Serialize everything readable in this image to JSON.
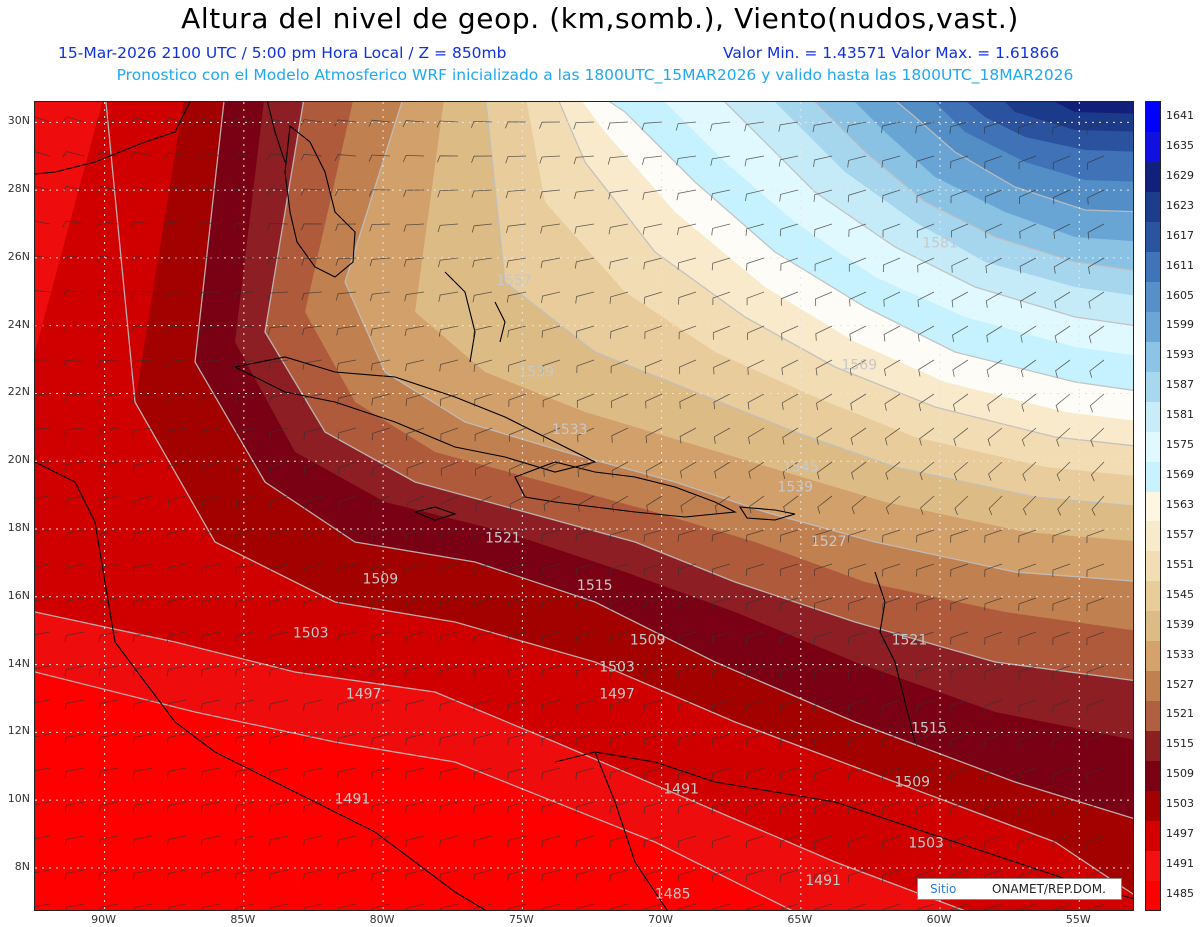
{
  "header": {
    "title": "Altura del nivel de geop. (km,somb.), Viento(nudos,vast.)",
    "subtitle_left": "15-Mar-2026  2100 UTC / 5:00 pm Hora Local / Z = 850mb",
    "subtitle_minmax": "Valor Min. = 1.43571  Valor Max. = 1.61866",
    "subtitle_model": "Pronostico con el Modelo Atmosferico WRF inicializado a las 1800UTC_15MAR2026 y valido hasta las  1800UTC_18MAR2026"
  },
  "map": {
    "lat_range": [
      6.7,
      30.6
    ],
    "lon_range": [
      -92.5,
      -53.0
    ],
    "lat_labels": [
      "30N",
      "28N",
      "26N",
      "24N",
      "22N",
      "20N",
      "18N",
      "16N",
      "14N",
      "12N",
      "10N",
      "8N"
    ],
    "lat_values": [
      30,
      28,
      26,
      24,
      22,
      20,
      18,
      16,
      14,
      12,
      10,
      8
    ],
    "lon_labels": [
      "90W",
      "85W",
      "80W",
      "75W",
      "70W",
      "65W",
      "60W",
      "55W"
    ],
    "lon_values": [
      -90,
      -85,
      -80,
      -75,
      -70,
      -65,
      -60,
      -55
    ],
    "contour_labels": [
      {
        "text": "1557",
        "lon": -75.3,
        "lat": 25.2
      },
      {
        "text": "1569",
        "lon": -62.9,
        "lat": 22.7
      },
      {
        "text": "1581",
        "lon": -60.0,
        "lat": 26.3
      },
      {
        "text": "1539",
        "lon": -74.5,
        "lat": 22.5
      },
      {
        "text": "1533",
        "lon": -73.3,
        "lat": 20.8
      },
      {
        "text": "1545",
        "lon": -65.0,
        "lat": 19.7
      },
      {
        "text": "1539",
        "lon": -65.2,
        "lat": 19.1
      },
      {
        "text": "1527",
        "lon": -64.0,
        "lat": 17.5
      },
      {
        "text": "1521",
        "lon": -75.7,
        "lat": 17.6
      },
      {
        "text": "1521",
        "lon": -61.1,
        "lat": 14.6
      },
      {
        "text": "1515",
        "lon": -72.4,
        "lat": 16.2
      },
      {
        "text": "1515",
        "lon": -60.4,
        "lat": 12.0
      },
      {
        "text": "1509",
        "lon": -80.1,
        "lat": 16.4
      },
      {
        "text": "1509",
        "lon": -70.5,
        "lat": 14.6
      },
      {
        "text": "1509",
        "lon": -61.0,
        "lat": 10.4
      },
      {
        "text": "1503",
        "lon": -82.6,
        "lat": 14.8
      },
      {
        "text": "1503",
        "lon": -71.6,
        "lat": 13.8
      },
      {
        "text": "1503",
        "lon": -60.5,
        "lat": 8.6
      },
      {
        "text": "1497",
        "lon": -80.7,
        "lat": 13.0
      },
      {
        "text": "1497",
        "lon": -71.6,
        "lat": 13.0
      },
      {
        "text": "1491",
        "lon": -81.1,
        "lat": 9.9
      },
      {
        "text": "1491",
        "lon": -69.3,
        "lat": 10.2
      },
      {
        "text": "1491",
        "lon": -64.2,
        "lat": 7.5
      },
      {
        "text": "1485",
        "lon": -69.6,
        "lat": 7.1
      }
    ]
  },
  "colorbar": {
    "labels": [
      "1485",
      "1491",
      "1497",
      "1503",
      "1509",
      "1515",
      "1521",
      "1527",
      "1533",
      "1539",
      "1545",
      "1551",
      "1557",
      "1563",
      "1569",
      "1575",
      "1581",
      "1587",
      "1593",
      "1599",
      "1605",
      "1611",
      "1617",
      "1623",
      "1629",
      "1635",
      "1641"
    ],
    "colors": [
      "#ff0000",
      "#f21010",
      "#d40000",
      "#a50000",
      "#7a0014",
      "#8c2020",
      "#b06040",
      "#c08050",
      "#d3a36b",
      "#ddbb85",
      "#e8cc9a",
      "#f2ddb5",
      "#f8ebcc",
      "#fef6e0",
      "#c8f2ff",
      "#e2f8ff",
      "#c8ecf8",
      "#a8d8ef",
      "#8cc4e6",
      "#6aa6d6",
      "#5590c8",
      "#3f74b8",
      "#2a54a0",
      "#1c3c8c",
      "#10207c",
      "#1010e0",
      "#0000ff"
    ],
    "top_color": "#0000ff"
  },
  "credit": {
    "site": "Sitio",
    "org": "ONAMET/REP.DOM."
  }
}
